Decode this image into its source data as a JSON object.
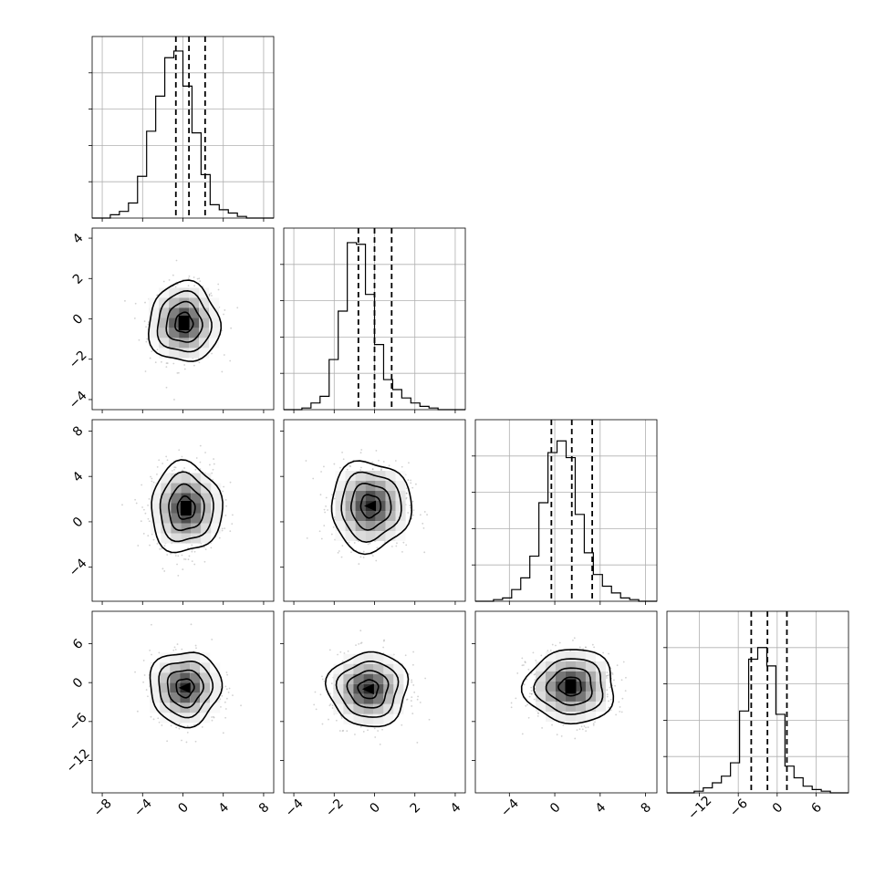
{
  "chart_data": {
    "type": "corner",
    "params": [
      {
        "range": [
          -9,
          9
        ],
        "hist": [
          0,
          0,
          0.02,
          0.04,
          0.09,
          0.25,
          0.52,
          0.73,
          0.96,
          1.0,
          0.79,
          0.51,
          0.26,
          0.08,
          0.05,
          0.03,
          0.01,
          0,
          0,
          0
        ],
        "quantiles": [
          -0.7,
          0.6,
          2.2
        ]
      },
      {
        "range": [
          -4.5,
          4.5
        ],
        "hist": [
          0,
          0,
          0.01,
          0.04,
          0.08,
          0.3,
          0.59,
          1.0,
          0.99,
          0.69,
          0.39,
          0.18,
          0.12,
          0.07,
          0.04,
          0.02,
          0.01,
          0,
          0,
          0
        ],
        "quantiles": [
          -0.8,
          0.0,
          0.85
        ]
      },
      {
        "range": [
          -7,
          9
        ],
        "hist": [
          0,
          0,
          0.01,
          0.02,
          0.07,
          0.14,
          0.27,
          0.59,
          0.89,
          0.96,
          0.86,
          0.52,
          0.29,
          0.16,
          0.09,
          0.05,
          0.02,
          0.01,
          0,
          0
        ],
        "quantiles": [
          -0.3,
          1.5,
          3.3
        ]
      },
      {
        "range": [
          -17,
          11
        ],
        "hist": [
          0,
          0,
          0,
          0.01,
          0.03,
          0.06,
          0.1,
          0.18,
          0.49,
          0.8,
          0.87,
          0.76,
          0.47,
          0.16,
          0.09,
          0.04,
          0.02,
          0.01,
          0,
          0
        ],
        "quantiles": [
          -4.0,
          -1.5,
          1.5
        ]
      }
    ],
    "pairs": [
      {
        "row": 1,
        "col": 0,
        "center": [
          0.1,
          -0.2
        ],
        "spread": [
          1.6,
          0.9
        ],
        "inner_mark": "square"
      },
      {
        "row": 2,
        "col": 0,
        "center": [
          0.3,
          1.2
        ],
        "spread": [
          1.6,
          1.8
        ],
        "inner_mark": "square"
      },
      {
        "row": 2,
        "col": 1,
        "center": [
          -0.2,
          1.4
        ],
        "spread": [
          0.9,
          1.8
        ],
        "inner_mark": "triangle"
      },
      {
        "row": 3,
        "col": 0,
        "center": [
          0.2,
          -0.8
        ],
        "spread": [
          1.6,
          2.6
        ],
        "inner_mark": "triangle"
      },
      {
        "row": 3,
        "col": 1,
        "center": [
          -0.3,
          -1.0
        ],
        "spread": [
          0.9,
          2.6
        ],
        "inner_mark": "triangle"
      },
      {
        "row": 3,
        "col": 2,
        "center": [
          1.4,
          -0.6
        ],
        "spread": [
          1.8,
          2.6
        ],
        "inner_mark": "square"
      }
    ],
    "ticks": {
      "col": [
        {
          "values": [
            -8,
            -4,
            0,
            4,
            8
          ],
          "labels": [
            "−8",
            "−4",
            "0",
            "4",
            "8"
          ]
        },
        {
          "values": [
            -4,
            -2,
            0,
            2,
            4
          ],
          "labels": [
            "−4",
            "−2",
            "0",
            "2",
            "4"
          ]
        },
        {
          "values": [
            -4,
            0,
            4,
            8
          ],
          "labels": [
            "−4",
            "0",
            "4",
            "8"
          ]
        },
        {
          "values": [
            -12,
            -6,
            0,
            6
          ],
          "labels": [
            "−12",
            "−6",
            "0",
            "6"
          ]
        }
      ],
      "row": [
        null,
        {
          "values": [
            -4,
            -2,
            0,
            2,
            4
          ],
          "labels": [
            "−4",
            "−2",
            "0",
            "2",
            "4"
          ]
        },
        {
          "values": [
            -4,
            0,
            4,
            8
          ],
          "labels": [
            "−4",
            "0",
            "4",
            "8"
          ]
        },
        {
          "values": [
            -12,
            -6,
            0,
            6
          ],
          "labels": [
            "−12",
            "−6",
            "0",
            "6"
          ]
        }
      ]
    },
    "grid": true,
    "contour_levels": [
      0.5,
      1.0,
      1.5,
      2.0
    ],
    "colors": {
      "line": "#000000",
      "grid": "#b0b0b0",
      "scatter": "#9a9a9a",
      "frame": "#000000"
    }
  }
}
